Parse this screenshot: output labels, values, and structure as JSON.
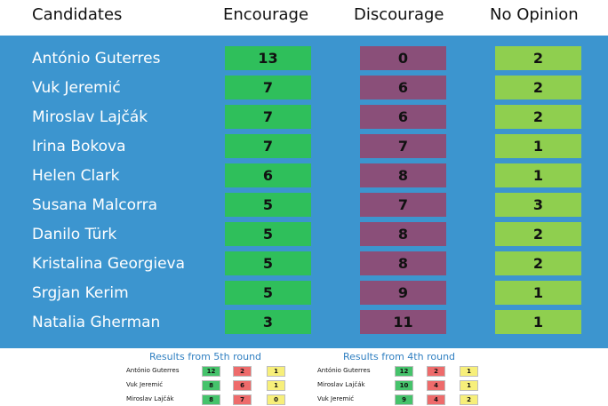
{
  "headers": {
    "candidates": "Candidates",
    "encourage": "Encourage",
    "discourage": "Discourage",
    "no_opinion": "No Opinion"
  },
  "rows": [
    {
      "name": "António Guterres",
      "encourage": "13",
      "discourage": "0",
      "no_opinion": "2"
    },
    {
      "name": "Vuk Jeremić",
      "encourage": "7",
      "discourage": "6",
      "no_opinion": "2"
    },
    {
      "name": "Miroslav Lajčák",
      "encourage": "7",
      "discourage": "6",
      "no_opinion": "2"
    },
    {
      "name": "Irina Bokova",
      "encourage": "7",
      "discourage": "7",
      "no_opinion": "1"
    },
    {
      "name": "Helen Clark",
      "encourage": "6",
      "discourage": "8",
      "no_opinion": "1"
    },
    {
      "name": "Susana Malcorra",
      "encourage": "5",
      "discourage": "7",
      "no_opinion": "3"
    },
    {
      "name": "Danilo Türk",
      "encourage": "5",
      "discourage": "8",
      "no_opinion": "2"
    },
    {
      "name": "Kristalina Georgieva",
      "encourage": "5",
      "discourage": "8",
      "no_opinion": "2"
    },
    {
      "name": "Srgjan Kerim",
      "encourage": "5",
      "discourage": "9",
      "no_opinion": "1"
    },
    {
      "name": "Natalia Gherman",
      "encourage": "3",
      "discourage": "11",
      "no_opinion": "1"
    }
  ],
  "round5": {
    "title": "Results from 5th round",
    "rows": [
      {
        "name": "António Guterres",
        "encourage": "12",
        "discourage": "2",
        "no_opinion": "1"
      },
      {
        "name": "Vuk Jeremić",
        "encourage": "8",
        "discourage": "6",
        "no_opinion": "1"
      },
      {
        "name": "Miroslav Lajčák",
        "encourage": "8",
        "discourage": "7",
        "no_opinion": "0"
      }
    ]
  },
  "round4": {
    "title": "Results from 4th round",
    "rows": [
      {
        "name": "António Guterres",
        "encourage": "12",
        "discourage": "2",
        "no_opinion": "1"
      },
      {
        "name": "Miroslav Lajčák",
        "encourage": "10",
        "discourage": "4",
        "no_opinion": "1"
      },
      {
        "name": "Vuk Jeremić",
        "encourage": "9",
        "discourage": "4",
        "no_opinion": "2"
      }
    ]
  },
  "colors": {
    "panel_blue": "#3c95cf",
    "encourage_green": "#2fbf5b",
    "discourage_purple": "#8a4f79",
    "no_opinion_lime": "#8fcf4f",
    "small_green": "#45c36b",
    "small_red": "#ee6b6b",
    "small_yellow": "#f7ef7a",
    "footer_title_blue": "#2f7fc1"
  }
}
